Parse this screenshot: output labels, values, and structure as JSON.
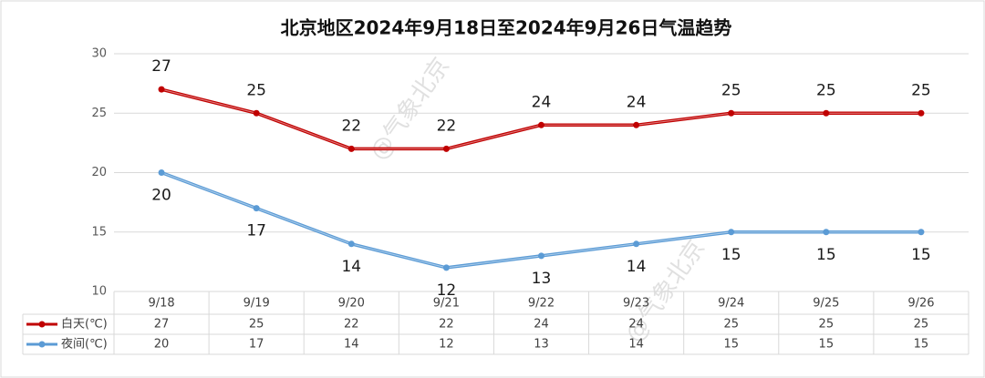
{
  "chart_data": {
    "type": "line",
    "title": "北京地区2024年9月18日至2024年9月26日气温趋势",
    "categories": [
      "9/18",
      "9/19",
      "9/20",
      "9/21",
      "9/22",
      "9/23",
      "9/24",
      "9/25",
      "9/26"
    ],
    "series": [
      {
        "name": "白天(℃)",
        "color": "#c00000",
        "values": [
          27,
          25,
          22,
          22,
          24,
          24,
          25,
          25,
          25
        ]
      },
      {
        "name": "夜间(℃)",
        "color": "#5b9bd5",
        "values": [
          20,
          17,
          14,
          12,
          13,
          14,
          15,
          15,
          15
        ]
      }
    ],
    "ylim": [
      10,
      30
    ],
    "yticks": [
      10,
      15,
      20,
      25,
      30
    ],
    "grid": true,
    "watermark": "@气象北京"
  }
}
